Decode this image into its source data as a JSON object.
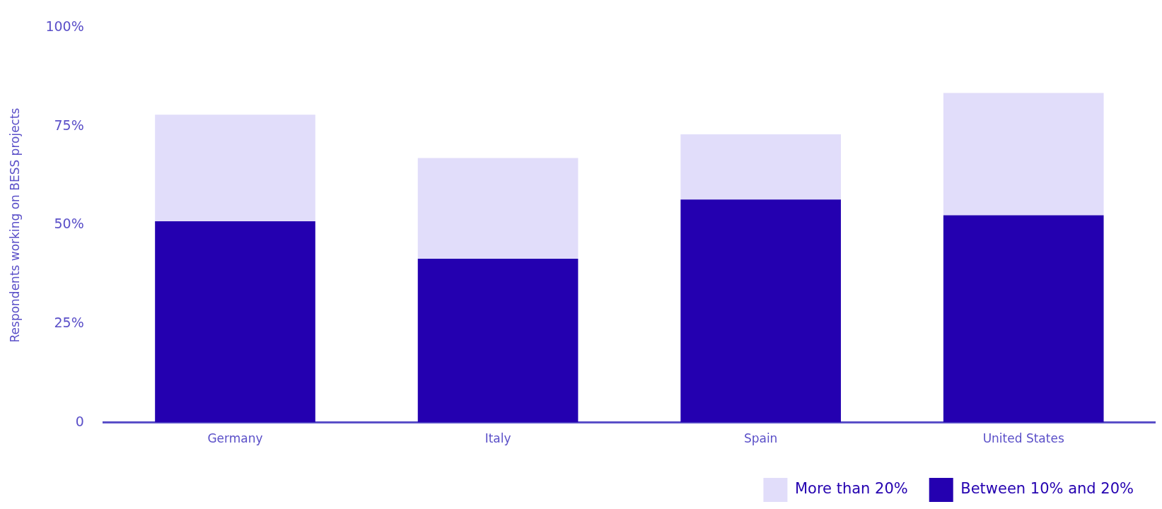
{
  "chart_data": {
    "type": "bar",
    "stacked": true,
    "ylabel": "Respondents working on BESS projects",
    "categories": [
      "Germany",
      "Italy",
      "Spain",
      "United States"
    ],
    "series": [
      {
        "name": "Between 10% and 20%",
        "color": "#2400b0",
        "values": [
          51,
          41.5,
          56.5,
          52.5
        ]
      },
      {
        "name": "More than 20%",
        "color": "#e1ddfa",
        "values": [
          27,
          25.5,
          16.5,
          31
        ]
      }
    ],
    "ylim": [
      0,
      100
    ],
    "yticks": [
      {
        "value": 0,
        "label": "0"
      },
      {
        "value": 25,
        "label": "25%"
      },
      {
        "value": 50,
        "label": "50%"
      },
      {
        "value": 75,
        "label": "75%"
      },
      {
        "value": 100,
        "label": "100%"
      }
    ],
    "grid": false,
    "legend": "bottom right"
  }
}
